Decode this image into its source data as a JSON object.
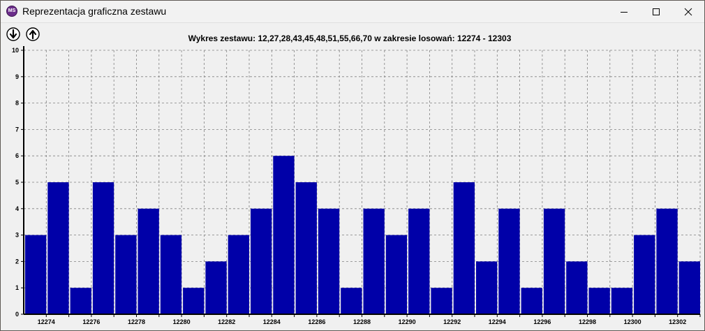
{
  "window": {
    "title": "Reprezentacja graficzna zestawu",
    "app_icon_text": "MS"
  },
  "toolbar": {
    "down_icon": "arrow-down-circle-icon",
    "up_icon": "arrow-up-circle-icon"
  },
  "colors": {
    "bar": "#0000a8",
    "grid": "#808080",
    "background": "#f0f0f0"
  },
  "chart_data": {
    "type": "bar",
    "title": "Wykres zestawu: 12,27,28,43,45,48,51,55,66,70 w zakresie losowań: 12274 - 12303",
    "xlabel": "",
    "ylabel": "",
    "ylim": [
      0,
      10
    ],
    "yticks": [
      "0",
      "1",
      "2",
      "3",
      "4",
      "5",
      "6",
      "7",
      "8",
      "9",
      "10"
    ],
    "grid": true,
    "legend": "none",
    "categories": [
      "12274",
      "12275",
      "12276",
      "12277",
      "12278",
      "12279",
      "12280",
      "12281",
      "12282",
      "12283",
      "12284",
      "12285",
      "12286",
      "12287",
      "12288",
      "12289",
      "12290",
      "12291",
      "12292",
      "12293",
      "12294",
      "12295",
      "12296",
      "12297",
      "12298",
      "12299",
      "12300",
      "12301",
      "12302",
      "12303"
    ],
    "x_tick_labels": [
      "12274",
      "",
      "12276",
      "",
      "12278",
      "",
      "12280",
      "",
      "12282",
      "",
      "12284",
      "",
      "12286",
      "",
      "12288",
      "",
      "12290",
      "",
      "12292",
      "",
      "12294",
      "",
      "12296",
      "",
      "12298",
      "",
      "12300",
      "",
      "12302",
      ""
    ],
    "values": [
      3,
      5,
      1,
      5,
      3,
      4,
      3,
      1,
      2,
      3,
      4,
      6,
      5,
      4,
      1,
      4,
      3,
      4,
      1,
      5,
      2,
      4,
      1,
      4,
      2,
      1,
      1,
      3,
      4,
      2
    ]
  }
}
